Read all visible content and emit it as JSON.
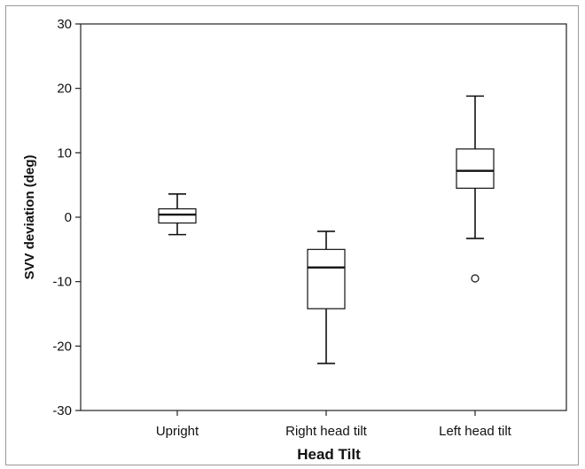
{
  "chart_data": {
    "type": "boxplot",
    "xlabel": "Head Tilt",
    "ylabel": "SVV deviation (deg)",
    "ylim": [
      -30,
      30
    ],
    "yticks": [
      30,
      20,
      10,
      0,
      -10,
      -20,
      -30
    ],
    "ytick_labels": [
      "30",
      "20",
      "10",
      "0",
      "-10",
      "-20",
      "-30"
    ],
    "grid": false,
    "categories": [
      "Upright",
      "Right head tilt",
      "Left head tilt"
    ],
    "boxes": [
      {
        "category": "Upright",
        "whisker_low": -2.7,
        "q1": -0.9,
        "median": 0.4,
        "q3": 1.3,
        "whisker_high": 3.6,
        "outliers": []
      },
      {
        "category": "Right head tilt",
        "whisker_low": -22.7,
        "q1": -14.2,
        "median": -7.8,
        "q3": -5.0,
        "whisker_high": -2.2,
        "outliers": []
      },
      {
        "category": "Left head tilt",
        "whisker_low": -3.3,
        "q1": 4.5,
        "median": 7.2,
        "q3": 10.6,
        "whisker_high": 18.8,
        "outliers": [
          -9.5
        ]
      }
    ]
  }
}
